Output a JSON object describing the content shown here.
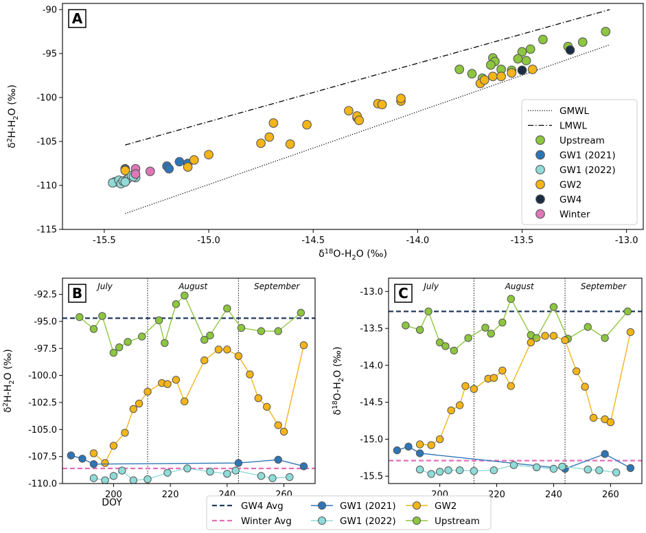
{
  "colors": {
    "Upstream": "#8dc63f",
    "GW1 (2021)": "#2e75b6",
    "GW1 (2022)": "#8fdbd8",
    "GW2": "#f4b519",
    "GW4": "#1c2c45",
    "Winter": "#dd77b8",
    "GW4 Avg": "#1f3a5f",
    "Winter Avg": "#e66db8"
  },
  "chart_data": [
    {
      "panel": "A",
      "type": "scatter",
      "xlabel": "δ18O-H2O (‰)",
      "ylabel": "δ2H-H2O (‰)",
      "xlim": [
        -15.7,
        -12.92
      ],
      "ylim": [
        -115,
        -89.3
      ],
      "xticks": [
        "-15.5",
        "-15.0",
        "-14.5",
        "-14.0",
        "-13.5",
        "-13.0"
      ],
      "yticks": [
        "-90",
        "-95",
        "-100",
        "-105",
        "-110",
        "-115"
      ],
      "lines": [
        {
          "name": "GMWL",
          "style": "dotted",
          "x": [
            -15.4,
            -13.08
          ],
          "y": [
            -113.2,
            -94.0
          ]
        },
        {
          "name": "LMWL",
          "style": "dashdot",
          "x": [
            -15.4,
            -13.08
          ],
          "y": [
            -105.4,
            -90.0
          ]
        }
      ],
      "series": [
        {
          "name": "Upstream",
          "points": [
            [
              -13.1,
              -92.5
            ],
            [
              -13.21,
              -93.7
            ],
            [
              -13.4,
              -93.4
            ],
            [
              -13.28,
              -94.2
            ],
            [
              -13.5,
              -94.8
            ],
            [
              -13.48,
              -95.8
            ],
            [
              -13.52,
              -95.6
            ],
            [
              -13.46,
              -94.5
            ],
            [
              -13.64,
              -95.5
            ],
            [
              -13.63,
              -95.9
            ],
            [
              -13.65,
              -96.3
            ],
            [
              -13.6,
              -96.8
            ],
            [
              -13.55,
              -96.9
            ],
            [
              -13.8,
              -96.8
            ],
            [
              -13.74,
              -97.3
            ],
            [
              -13.69,
              -97.8
            ]
          ]
        },
        {
          "name": "GW1 (2021)",
          "points": [
            [
              -15.4,
              -108.1
            ],
            [
              -15.4,
              -108.2
            ],
            [
              -15.2,
              -107.8
            ],
            [
              -15.19,
              -108.1
            ],
            [
              -15.14,
              -107.3
            ],
            [
              -15.1,
              -107.5
            ]
          ]
        },
        {
          "name": "GW1 (2022)",
          "points": [
            [
              -15.45,
              -109.6
            ],
            [
              -15.46,
              -109.7
            ],
            [
              -15.43,
              -109.4
            ],
            [
              -15.42,
              -109.8
            ],
            [
              -15.41,
              -109.5
            ],
            [
              -15.39,
              -109.3
            ],
            [
              -15.38,
              -109.1
            ],
            [
              -15.37,
              -108.9
            ],
            [
              -15.35,
              -109.1
            ],
            [
              -15.4,
              -109.6
            ],
            [
              -15.36,
              -109.0
            ]
          ]
        },
        {
          "name": "GW2",
          "points": [
            [
              -15.4,
              -108.3
            ],
            [
              -15.1,
              -107.9
            ],
            [
              -15.07,
              -107.1
            ],
            [
              -15.0,
              -106.5
            ],
            [
              -14.75,
              -105.2
            ],
            [
              -14.71,
              -104.5
            ],
            [
              -14.69,
              -102.9
            ],
            [
              -14.61,
              -105.3
            ],
            [
              -14.53,
              -103.1
            ],
            [
              -14.33,
              -101.5
            ],
            [
              -14.29,
              -102.3
            ],
            [
              -14.29,
              -102.1
            ],
            [
              -14.28,
              -102.6
            ],
            [
              -14.19,
              -100.7
            ],
            [
              -14.17,
              -100.8
            ],
            [
              -14.08,
              -100.4
            ],
            [
              -14.08,
              -100.1
            ],
            [
              -13.7,
              -98.4
            ],
            [
              -13.68,
              -98.0
            ],
            [
              -13.64,
              -97.6
            ],
            [
              -13.6,
              -97.6
            ],
            [
              -13.55,
              -97.2
            ],
            [
              -13.5,
              -96.9
            ],
            [
              -13.45,
              -96.8
            ]
          ]
        },
        {
          "name": "GW4",
          "points": [
            [
              -13.5,
              -96.9
            ],
            [
              -13.27,
              -94.6
            ]
          ]
        },
        {
          "name": "Winter",
          "points": [
            [
              -15.35,
              -108.1
            ],
            [
              -15.35,
              -108.7
            ],
            [
              -15.28,
              -108.4
            ]
          ]
        }
      ]
    },
    {
      "panel": "B",
      "type": "line",
      "xlabel": "DOY",
      "ylabel": "δ2H-H2O (‰)",
      "xlim": [
        182,
        271
      ],
      "ylim": [
        -110.0,
        -91.0
      ],
      "xticks": [
        "200",
        "220",
        "240",
        "260"
      ],
      "yticks": [
        "-92.5",
        "-95.0",
        "-97.5",
        "-100.0",
        "-102.5",
        "-105.0",
        "-107.5",
        "-110.0"
      ],
      "months": [
        "July",
        "August",
        "September"
      ],
      "month_boundaries": [
        212,
        244
      ],
      "hlines": [
        {
          "name": "GW4 Avg",
          "y": -94.7
        },
        {
          "name": "Winter Avg",
          "y": -108.6
        }
      ],
      "series": [
        {
          "name": "Upstream",
          "x": [
            188,
            193,
            196,
            200,
            202,
            205,
            210,
            216,
            218,
            222,
            225,
            232,
            234,
            240,
            245,
            252,
            258,
            266
          ],
          "y": [
            -94.6,
            -95.7,
            -94.5,
            -97.9,
            -97.4,
            -96.9,
            -96.4,
            -94.9,
            -97.0,
            -93.4,
            -92.6,
            -96.7,
            -96.3,
            -93.8,
            -95.6,
            -95.9,
            -95.9,
            -94.2
          ]
        },
        {
          "name": "GW2",
          "x": [
            193,
            197,
            200,
            204,
            207,
            209,
            212,
            217,
            219,
            222,
            225,
            232,
            237,
            240,
            244,
            248,
            251,
            254,
            258,
            260,
            267
          ],
          "y": [
            -107.2,
            -108.1,
            -106.5,
            -105.3,
            -103.1,
            -102.6,
            -101.5,
            -100.7,
            -100.8,
            -100.4,
            -102.4,
            -98.6,
            -97.6,
            -97.6,
            -98.2,
            -99.9,
            -102.1,
            -102.9,
            -104.6,
            -105.2,
            -97.2
          ]
        },
        {
          "name": "GW1 (2021)",
          "x": [
            185,
            189,
            193,
            244,
            258,
            267
          ],
          "y": [
            -107.4,
            -107.7,
            -108.2,
            -108.1,
            -107.8,
            -108.4
          ]
        },
        {
          "name": "GW1 (2022)",
          "x": [
            193,
            197,
            200,
            203,
            207,
            212,
            219,
            226,
            234,
            240,
            243,
            252,
            256,
            262
          ],
          "y": [
            -109.5,
            -109.7,
            -109.3,
            -108.8,
            -109.7,
            -109.6,
            -109.0,
            -108.6,
            -108.9,
            -109.1,
            -108.8,
            -109.3,
            -109.5,
            -109.4
          ]
        }
      ]
    },
    {
      "panel": "C",
      "type": "line",
      "xlabel": "DOY",
      "ylabel": "δ18O-H2O (‰)",
      "xlim": [
        182,
        271
      ],
      "ylim": [
        -15.6,
        -12.82
      ],
      "xticks": [
        "200",
        "220",
        "240",
        "260"
      ],
      "yticks": [
        "-13.0",
        "-13.5",
        "-14.0",
        "-14.5",
        "-15.0",
        "-15.5"
      ],
      "months": [
        "July",
        "August",
        "September"
      ],
      "month_boundaries": [
        212,
        244
      ],
      "hlines": [
        {
          "name": "GW4 Avg",
          "y": -13.27
        },
        {
          "name": "Winter Avg",
          "y": -15.29
        }
      ],
      "series": [
        {
          "name": "Upstream",
          "x": [
            188,
            193,
            196,
            200,
            202,
            205,
            210,
            216,
            218,
            222,
            225,
            232,
            234,
            240,
            245,
            252,
            258,
            266
          ],
          "y": [
            -13.46,
            -13.52,
            -13.27,
            -13.69,
            -13.74,
            -13.8,
            -13.63,
            -13.49,
            -13.57,
            -13.42,
            -13.1,
            -13.59,
            -13.63,
            -13.21,
            -13.64,
            -13.48,
            -13.63,
            -13.27
          ]
        },
        {
          "name": "GW2",
          "x": [
            193,
            197,
            200,
            204,
            207,
            209,
            212,
            217,
            219,
            222,
            225,
            232,
            237,
            240,
            244,
            248,
            251,
            254,
            258,
            260,
            267
          ],
          "y": [
            -15.07,
            -15.08,
            -15.0,
            -14.61,
            -14.54,
            -14.28,
            -14.32,
            -14.18,
            -14.17,
            -14.07,
            -14.28,
            -13.69,
            -13.6,
            -13.6,
            -13.66,
            -14.08,
            -14.29,
            -14.71,
            -14.73,
            -14.77,
            -13.55
          ]
        },
        {
          "name": "GW1 (2021)",
          "x": [
            185,
            189,
            193,
            244,
            258,
            267
          ],
          "y": [
            -15.15,
            -15.1,
            -15.19,
            -15.4,
            -15.2,
            -15.39
          ]
        },
        {
          "name": "GW1 (2022)",
          "x": [
            193,
            197,
            200,
            203,
            207,
            212,
            219,
            226,
            234,
            240,
            243,
            252,
            256,
            262
          ],
          "y": [
            -15.41,
            -15.47,
            -15.44,
            -15.42,
            -15.42,
            -15.43,
            -15.42,
            -15.35,
            -15.38,
            -15.4,
            -15.37,
            -15.41,
            -15.42,
            -15.45
          ]
        }
      ]
    }
  ],
  "legends": {
    "top": [
      "GMWL",
      "LMWL",
      "Upstream",
      "GW1 (2021)",
      "GW1 (2022)",
      "GW2",
      "GW4",
      "Winter"
    ],
    "bottom": [
      "GW4 Avg",
      "GW1 (2021)",
      "GW2",
      "Winter Avg",
      "GW1 (2022)",
      "Upstream"
    ]
  }
}
